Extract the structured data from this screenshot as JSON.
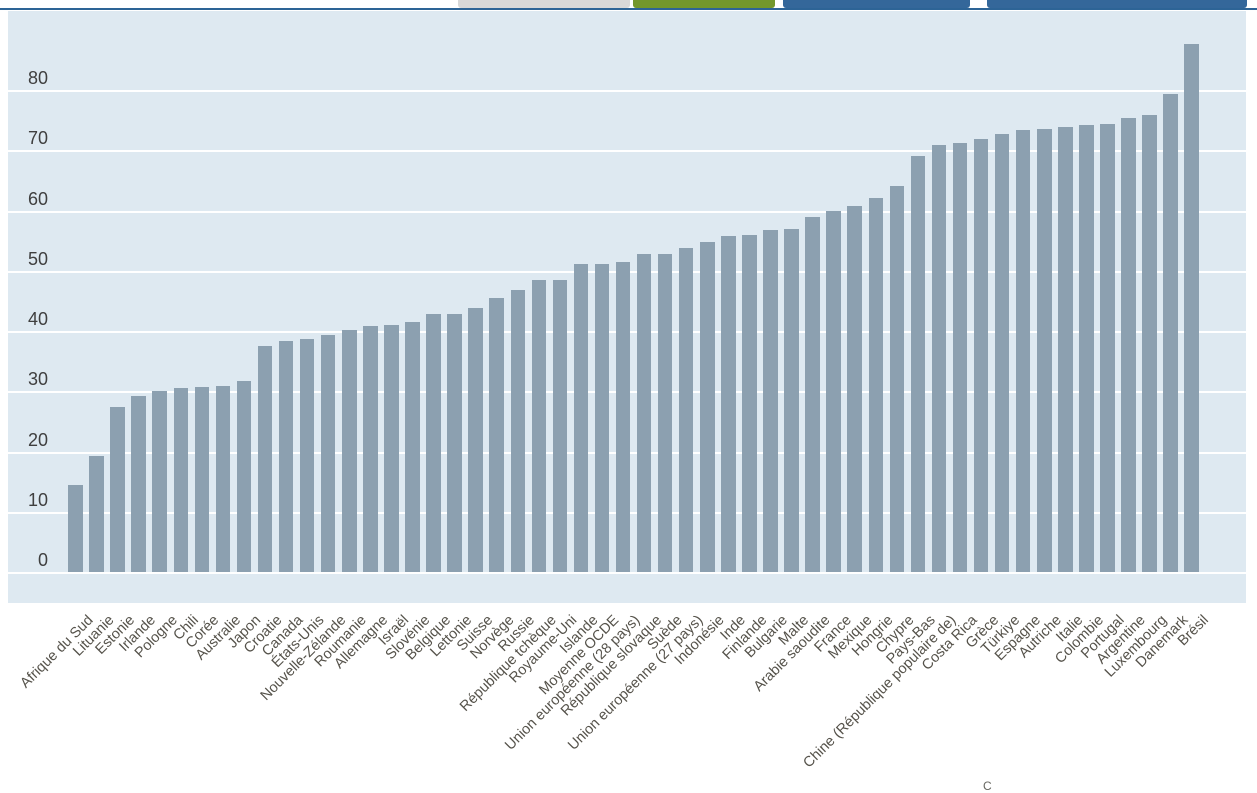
{
  "toolbar": {
    "divider_color": "#2d6496",
    "items": [
      {
        "name": "gray-button-bottom",
        "color": "#d8d8d8"
      },
      {
        "name": "green-button-bottom",
        "color": "#73972c"
      },
      {
        "name": "blue-button-bottom-1",
        "color": "#34679a"
      },
      {
        "name": "blue-button-bottom-2",
        "color": "#34679a"
      }
    ]
  },
  "chart_data": {
    "type": "bar",
    "title": "",
    "xlabel": "",
    "ylabel": "",
    "ylim": [
      0,
      90
    ],
    "yticks": [
      0,
      10,
      20,
      30,
      40,
      50,
      60,
      70,
      80
    ],
    "grid": true,
    "legend": false,
    "plot_bg_color": "#dee9f1",
    "gridline_color": "#ffffff",
    "bar_color": "#8ca0b0",
    "ytick_color": "#3f3f3f",
    "category_label_color": "#55524a",
    "categories": [
      "Afrique du Sud",
      "Lituanie",
      "Estonie",
      "Irlande",
      "Pologne",
      "Chili",
      "Corée",
      "Australie",
      "Japon",
      "Croatie",
      "Canada",
      "États-Unis",
      "Nouvelle-Zélande",
      "Roumanie",
      "Allemagne",
      "Israël",
      "Slovénie",
      "Belgique",
      "Lettonie",
      "Suisse",
      "Norvège",
      "Russie",
      "République tchèque",
      "Royaume-Uni",
      "Islande",
      "Moyenne OCDE",
      "Union européenne (28 pays)",
      "République slovaque",
      "Suède",
      "Union européenne (27 pays)",
      "Indonésie",
      "Inde",
      "Finlande",
      "Bulgarie",
      "Malte",
      "Arabie saoudite",
      "France",
      "Mexique",
      "Hongrie",
      "Chypre",
      "Pays-Bas",
      "Chine (République populaire de)",
      "Costa Rica",
      "Grèce",
      "Türkiye",
      "Espagne",
      "Autriche",
      "Italie",
      "Colombie",
      "Portugal",
      "Argentine",
      "Luxembourg",
      "Danemark",
      "Brésil"
    ],
    "values": [
      14.5,
      19.2,
      27.4,
      29.2,
      30.1,
      30.6,
      30.7,
      30.9,
      31.7,
      37.5,
      38.3,
      38.7,
      39.3,
      40.2,
      40.9,
      41.0,
      41.5,
      42.8,
      42.9,
      43.8,
      45.5,
      46.8,
      48.4,
      48.5,
      51.2,
      51.2,
      51.5,
      52.7,
      52.8,
      53.7,
      54.7,
      55.7,
      55.9,
      56.7,
      56.9,
      59.0,
      59.9,
      60.8,
      62.0,
      64.0,
      69.1,
      70.9,
      71.2,
      71.9,
      72.7,
      73.3,
      73.5,
      73.9,
      74.2,
      74.3,
      75.4,
      75.8,
      79.3,
      87.6
    ]
  },
  "artifact": {
    "text": "C"
  }
}
